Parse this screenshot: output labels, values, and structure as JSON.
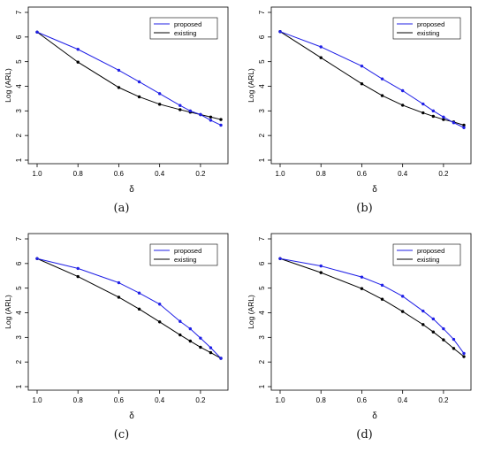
{
  "chart_data": [
    {
      "type": "line",
      "caption": "(a)",
      "xlabel": "δ",
      "ylabel": "Log (ARL)",
      "xlim": [
        1.0,
        0.1
      ],
      "ylim": [
        1,
        7
      ],
      "xticks": [
        "1.0",
        "0.8",
        "0.6",
        "0.4",
        "0.2"
      ],
      "yticks": [
        "1",
        "2",
        "3",
        "4",
        "5",
        "6",
        "7"
      ],
      "legend": "top-right",
      "x": [
        1.0,
        0.8,
        0.6,
        0.5,
        0.4,
        0.3,
        0.25,
        0.2,
        0.15,
        0.1
      ],
      "series": [
        {
          "name": "proposed",
          "color": "#1f1fe6",
          "values": [
            6.2,
            5.5,
            4.65,
            4.18,
            3.7,
            3.22,
            3.0,
            2.85,
            2.62,
            2.42
          ]
        },
        {
          "name": "existing",
          "color": "#000000",
          "values": [
            6.2,
            4.98,
            3.95,
            3.57,
            3.27,
            3.05,
            2.95,
            2.85,
            2.75,
            2.65
          ]
        }
      ]
    },
    {
      "type": "line",
      "caption": "(b)",
      "xlabel": "δ",
      "ylabel": "Log (ARL)",
      "xlim": [
        1.0,
        0.1
      ],
      "ylim": [
        1,
        7
      ],
      "xticks": [
        "1.0",
        "0.8",
        "0.6",
        "0.4",
        "0.2"
      ],
      "yticks": [
        "1",
        "2",
        "3",
        "4",
        "5",
        "6",
        "7"
      ],
      "legend": "top-right",
      "x": [
        1.0,
        0.8,
        0.6,
        0.5,
        0.4,
        0.3,
        0.25,
        0.2,
        0.15,
        0.1
      ],
      "series": [
        {
          "name": "proposed",
          "color": "#1f1fe6",
          "values": [
            6.22,
            5.6,
            4.82,
            4.3,
            3.82,
            3.28,
            3.0,
            2.75,
            2.52,
            2.32
          ]
        },
        {
          "name": "existing",
          "color": "#000000",
          "values": [
            6.22,
            5.16,
            4.1,
            3.62,
            3.23,
            2.92,
            2.78,
            2.65,
            2.55,
            2.42
          ]
        }
      ]
    },
    {
      "type": "line",
      "caption": "(c)",
      "xlabel": "δ",
      "ylabel": "Log (ARL)",
      "xlim": [
        1.0,
        0.1
      ],
      "ylim": [
        1,
        7
      ],
      "xticks": [
        "1.0",
        "0.8",
        "0.6",
        "0.4",
        "0.2"
      ],
      "yticks": [
        "1",
        "2",
        "3",
        "4",
        "5",
        "6",
        "7"
      ],
      "legend": "top-right",
      "x": [
        1.0,
        0.8,
        0.6,
        0.5,
        0.4,
        0.3,
        0.25,
        0.2,
        0.15,
        0.1
      ],
      "series": [
        {
          "name": "proposed",
          "color": "#1f1fe6",
          "values": [
            6.2,
            5.8,
            5.22,
            4.8,
            4.35,
            3.65,
            3.35,
            2.97,
            2.58,
            2.15
          ]
        },
        {
          "name": "existing",
          "color": "#000000",
          "values": [
            6.2,
            5.47,
            4.63,
            4.15,
            3.63,
            3.1,
            2.85,
            2.6,
            2.38,
            2.15
          ]
        }
      ]
    },
    {
      "type": "line",
      "caption": "(d)",
      "xlabel": "δ",
      "ylabel": "Log (ARL)",
      "xlim": [
        1.0,
        0.1
      ],
      "ylim": [
        1,
        7
      ],
      "xticks": [
        "1.0",
        "0.8",
        "0.6",
        "0.4",
        "0.2"
      ],
      "yticks": [
        "1",
        "2",
        "3",
        "4",
        "5",
        "6",
        "7"
      ],
      "legend": "top-right",
      "x": [
        1.0,
        0.8,
        0.6,
        0.5,
        0.4,
        0.3,
        0.25,
        0.2,
        0.15,
        0.1
      ],
      "series": [
        {
          "name": "proposed",
          "color": "#1f1fe6",
          "values": [
            6.2,
            5.9,
            5.45,
            5.12,
            4.67,
            4.07,
            3.75,
            3.35,
            2.92,
            2.35
          ]
        },
        {
          "name": "existing",
          "color": "#000000",
          "values": [
            6.2,
            5.63,
            4.98,
            4.55,
            4.05,
            3.52,
            3.22,
            2.9,
            2.55,
            2.22
          ]
        }
      ]
    }
  ]
}
